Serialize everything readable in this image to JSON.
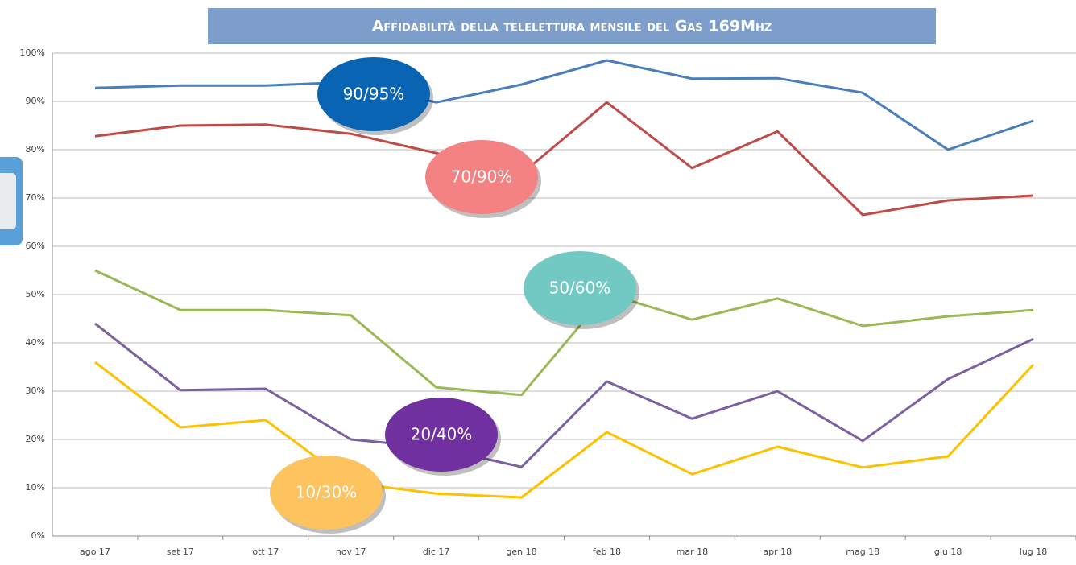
{
  "chart_data": {
    "type": "line",
    "title": "Affidabilità della telelettura mensile del Gas 169Mhz",
    "categories": [
      "ago 17",
      "set 17",
      "ott 17",
      "nov 17",
      "dic 17",
      "gen 18",
      "feb 18",
      "mar 18",
      "apr 18",
      "mag 18",
      "giu 18",
      "lug 18"
    ],
    "series": [
      {
        "color": "#4a7ebb",
        "values": [
          92.8,
          93.3,
          93.3,
          94,
          89.8,
          93.5,
          98.5,
          94.7,
          94.8,
          91.8,
          80,
          86
        ]
      },
      {
        "color": "#be4b48",
        "values": [
          82.8,
          85,
          85.2,
          83.3,
          79.3,
          75,
          89.8,
          76.2,
          83.8,
          66.5,
          69.5,
          70.5
        ]
      },
      {
        "color": "#98b954",
        "values": [
          55,
          46.8,
          46.8,
          45.7,
          30.8,
          29.2,
          50.2,
          44.8,
          49.2,
          43.5,
          45.5,
          46.8
        ]
      },
      {
        "color": "#7d60a0",
        "values": [
          44,
          30.2,
          30.5,
          20,
          18.3,
          14.3,
          32,
          24.3,
          30,
          19.7,
          32.5,
          40.8
        ]
      },
      {
        "color": "#ffc000",
        "values": [
          36,
          22.5,
          24,
          11,
          8.8,
          8,
          21.5,
          12.8,
          18.5,
          14.2,
          16.5,
          35.5
        ]
      }
    ],
    "annotations": [
      {
        "text": "90/95%",
        "color": "#0a64b4"
      },
      {
        "text": "70/90%",
        "color": "#f48282"
      },
      {
        "text": "50/60%",
        "color": "#72c9c3"
      },
      {
        "text": "20/40%",
        "color": "#7030a0"
      },
      {
        "text": "10/30%",
        "color": "#fcc35e"
      }
    ],
    "ylim": [
      0,
      100
    ],
    "yticks": [
      {
        "value": 0,
        "label": "0%"
      },
      {
        "value": 10,
        "label": "10%"
      },
      {
        "value": 20,
        "label": "20%"
      },
      {
        "value": 30,
        "label": "30%"
      },
      {
        "value": 40,
        "label": "40%"
      },
      {
        "value": 50,
        "label": "50%"
      },
      {
        "value": 60,
        "label": "60%"
      },
      {
        "value": 70,
        "label": "70%"
      },
      {
        "value": 80,
        "label": "80%"
      },
      {
        "value": 90,
        "label": "90%"
      },
      {
        "value": 100,
        "label": "100%"
      }
    ],
    "grid": true
  }
}
